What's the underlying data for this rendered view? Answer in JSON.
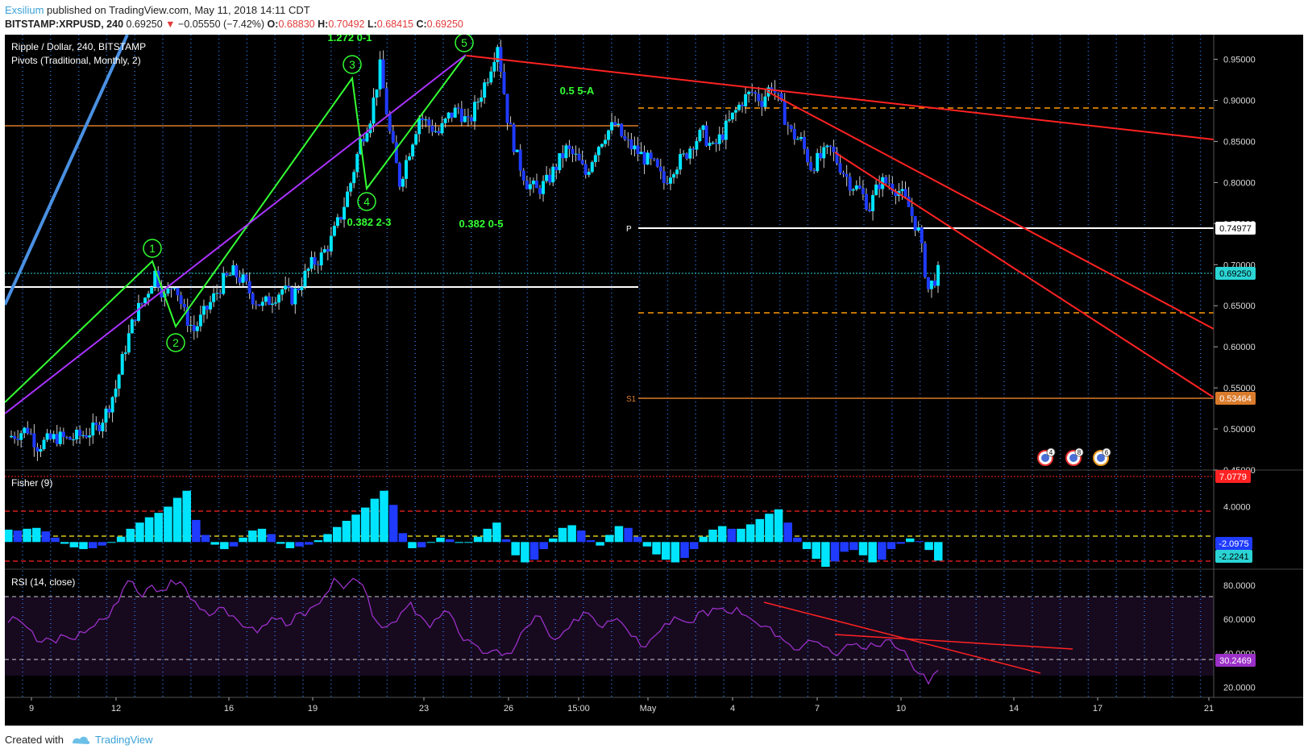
{
  "header": {
    "user": "Exsilium",
    "published_text": "published on TradingView.com, May 11, 2018 14:11 CDT",
    "symbol": "BITSTAMP:XRPUSD, 240",
    "last": "0.69250",
    "change": "−0.05550 (−7.42%)",
    "o_label": "O:",
    "o_value": "0.68830",
    "h_label": "H:",
    "h_value": "0.70492",
    "l_label": "L:",
    "l_value": "0.68415",
    "c_label": "C:",
    "c_value": "0.69250"
  },
  "footer": {
    "created_with": "Created with",
    "brand": "TradingView"
  },
  "colors": {
    "background": "#000000",
    "candle_up": "#00e5ff",
    "candle_down": "#1f3bff",
    "wave": "#33ff33",
    "channel": "#aa33ff",
    "trendline": "#ff2222",
    "pivot_p": "#ffffff",
    "pivot_s1": "#d97b2b",
    "fisher_pos": "#1f3bff",
    "fisher_neg": "#00e5ff",
    "rsi": "#9b30c8"
  },
  "chart_data": [
    {
      "type": "candlestick",
      "title": "Ripple / Dollar, 240, BITSTAMP",
      "subtitle": "Pivots (Traditional, Monthly, 2)",
      "x_ticks": [
        "9",
        "12",
        "16",
        "19",
        "23",
        "26",
        "15:00",
        "May",
        "4",
        "7",
        "10",
        "14",
        "17",
        "21"
      ],
      "y_ticks": [
        "0.95000",
        "0.90000",
        "0.85000",
        "0.80000",
        "0.75000",
        "0.70000",
        "0.65000",
        "0.60000",
        "0.55000",
        "0.50000",
        "0.45000"
      ],
      "ylim": [
        0.45,
        0.98
      ],
      "close_path": [
        0.49,
        0.495,
        0.5,
        0.48,
        0.485,
        0.49,
        0.487,
        0.49,
        0.495,
        0.5,
        0.52,
        0.55,
        0.6,
        0.64,
        0.66,
        0.69,
        0.66,
        0.68,
        0.64,
        0.62,
        0.64,
        0.66,
        0.68,
        0.69,
        0.68,
        0.66,
        0.65,
        0.66,
        0.67,
        0.66,
        0.68,
        0.7,
        0.71,
        0.73,
        0.76,
        0.8,
        0.85,
        0.88,
        0.94,
        0.86,
        0.8,
        0.84,
        0.88,
        0.87,
        0.86,
        0.88,
        0.89,
        0.87,
        0.9,
        0.93,
        0.97,
        0.88,
        0.83,
        0.8,
        0.79,
        0.8,
        0.82,
        0.84,
        0.83,
        0.81,
        0.84,
        0.86,
        0.87,
        0.85,
        0.84,
        0.83,
        0.82,
        0.8,
        0.82,
        0.83,
        0.85,
        0.86,
        0.84,
        0.86,
        0.88,
        0.9,
        0.91,
        0.9,
        0.92,
        0.89,
        0.86,
        0.85,
        0.82,
        0.83,
        0.84,
        0.82,
        0.8,
        0.79,
        0.77,
        0.8,
        0.8,
        0.79,
        0.77,
        0.74,
        0.67,
        0.69
      ],
      "pivots": [
        {
          "label": "P",
          "value": 0.74977,
          "badge": "0.74977"
        },
        {
          "label": "S1",
          "value": 0.53464,
          "badge": "0.53464"
        }
      ],
      "last_price_badge": "0.69250",
      "wave_labels": [
        "1",
        "2",
        "3",
        "4",
        "5"
      ],
      "annotations": [
        "1.272 0-1",
        "0.382 2-3",
        "0.382 0-5",
        "0.5 5-A"
      ],
      "event_badges": [
        "4",
        "8",
        "6"
      ]
    },
    {
      "type": "bar",
      "title": "Fisher (9)",
      "y_ticks": [
        "4.0000",
        "0.0000"
      ],
      "ylim": [
        -2.8,
        7.6
      ],
      "badges": [
        "7.0779",
        "-2.0975",
        "-2.2241"
      ],
      "values": [
        1.4,
        1.3,
        1.5,
        1.6,
        1.2,
        0.5,
        -0.2,
        -0.6,
        -0.8,
        -0.7,
        -0.4,
        0.0,
        0.6,
        1.5,
        2.2,
        2.8,
        3.3,
        4.0,
        5.0,
        5.8,
        2.5,
        0.8,
        -0.3,
        -0.8,
        -0.5,
        0.5,
        1.3,
        1.5,
        0.9,
        -0.2,
        -0.7,
        -0.5,
        -0.3,
        0.2,
        0.9,
        1.7,
        2.4,
        3.1,
        3.9,
        4.9,
        5.8,
        4.2,
        1.0,
        -0.7,
        -0.6,
        0.0,
        0.5,
        0.3,
        -0.1,
        0.0,
        0.6,
        1.5,
        2.2,
        0.3,
        -1.5,
        -2.3,
        -2.0,
        -0.8,
        0.4,
        1.6,
        1.9,
        1.3,
        0.2,
        -0.4,
        0.8,
        1.8,
        1.6,
        0.6,
        -0.5,
        -1.4,
        -2.0,
        -2.3,
        -1.8,
        -0.8,
        0.6,
        1.4,
        1.8,
        1.5,
        1.5,
        2.0,
        2.6,
        3.2,
        3.7,
        2.2,
        0.5,
        -0.8,
        -1.9,
        -2.8,
        -2.2,
        -1.1,
        -0.9,
        -1.5,
        -2.3,
        -2.0,
        -0.8,
        -0.2,
        0.4,
        0.1,
        -0.9,
        -2.1
      ]
    },
    {
      "type": "line",
      "title": "RSI (14, close)",
      "y_ticks": [
        "80.0000",
        "60.0000",
        "40.0000",
        "20.0000"
      ],
      "ylim": [
        15,
        88
      ],
      "badge": "30.2469",
      "bands": [
        70,
        30
      ],
      "values": [
        58,
        60,
        55,
        47,
        49,
        46,
        50,
        48,
        52,
        56,
        60,
        68,
        78,
        82,
        73,
        80,
        77,
        83,
        82,
        72,
        66,
        62,
        67,
        62,
        59,
        55,
        52,
        57,
        60,
        56,
        63,
        62,
        68,
        74,
        84,
        78,
        84,
        80,
        62,
        55,
        58,
        64,
        70,
        62,
        55,
        61,
        64,
        52,
        48,
        44,
        40,
        42,
        40,
        45,
        55,
        62,
        56,
        48,
        53,
        60,
        64,
        61,
        55,
        59,
        58,
        50,
        44,
        48,
        53,
        57,
        60,
        58,
        64,
        62,
        66,
        64,
        67,
        62,
        58,
        56,
        50,
        47,
        42,
        45,
        47,
        44,
        40,
        42,
        45,
        43,
        46,
        44,
        48,
        42,
        36,
        28,
        22,
        30
      ]
    }
  ]
}
